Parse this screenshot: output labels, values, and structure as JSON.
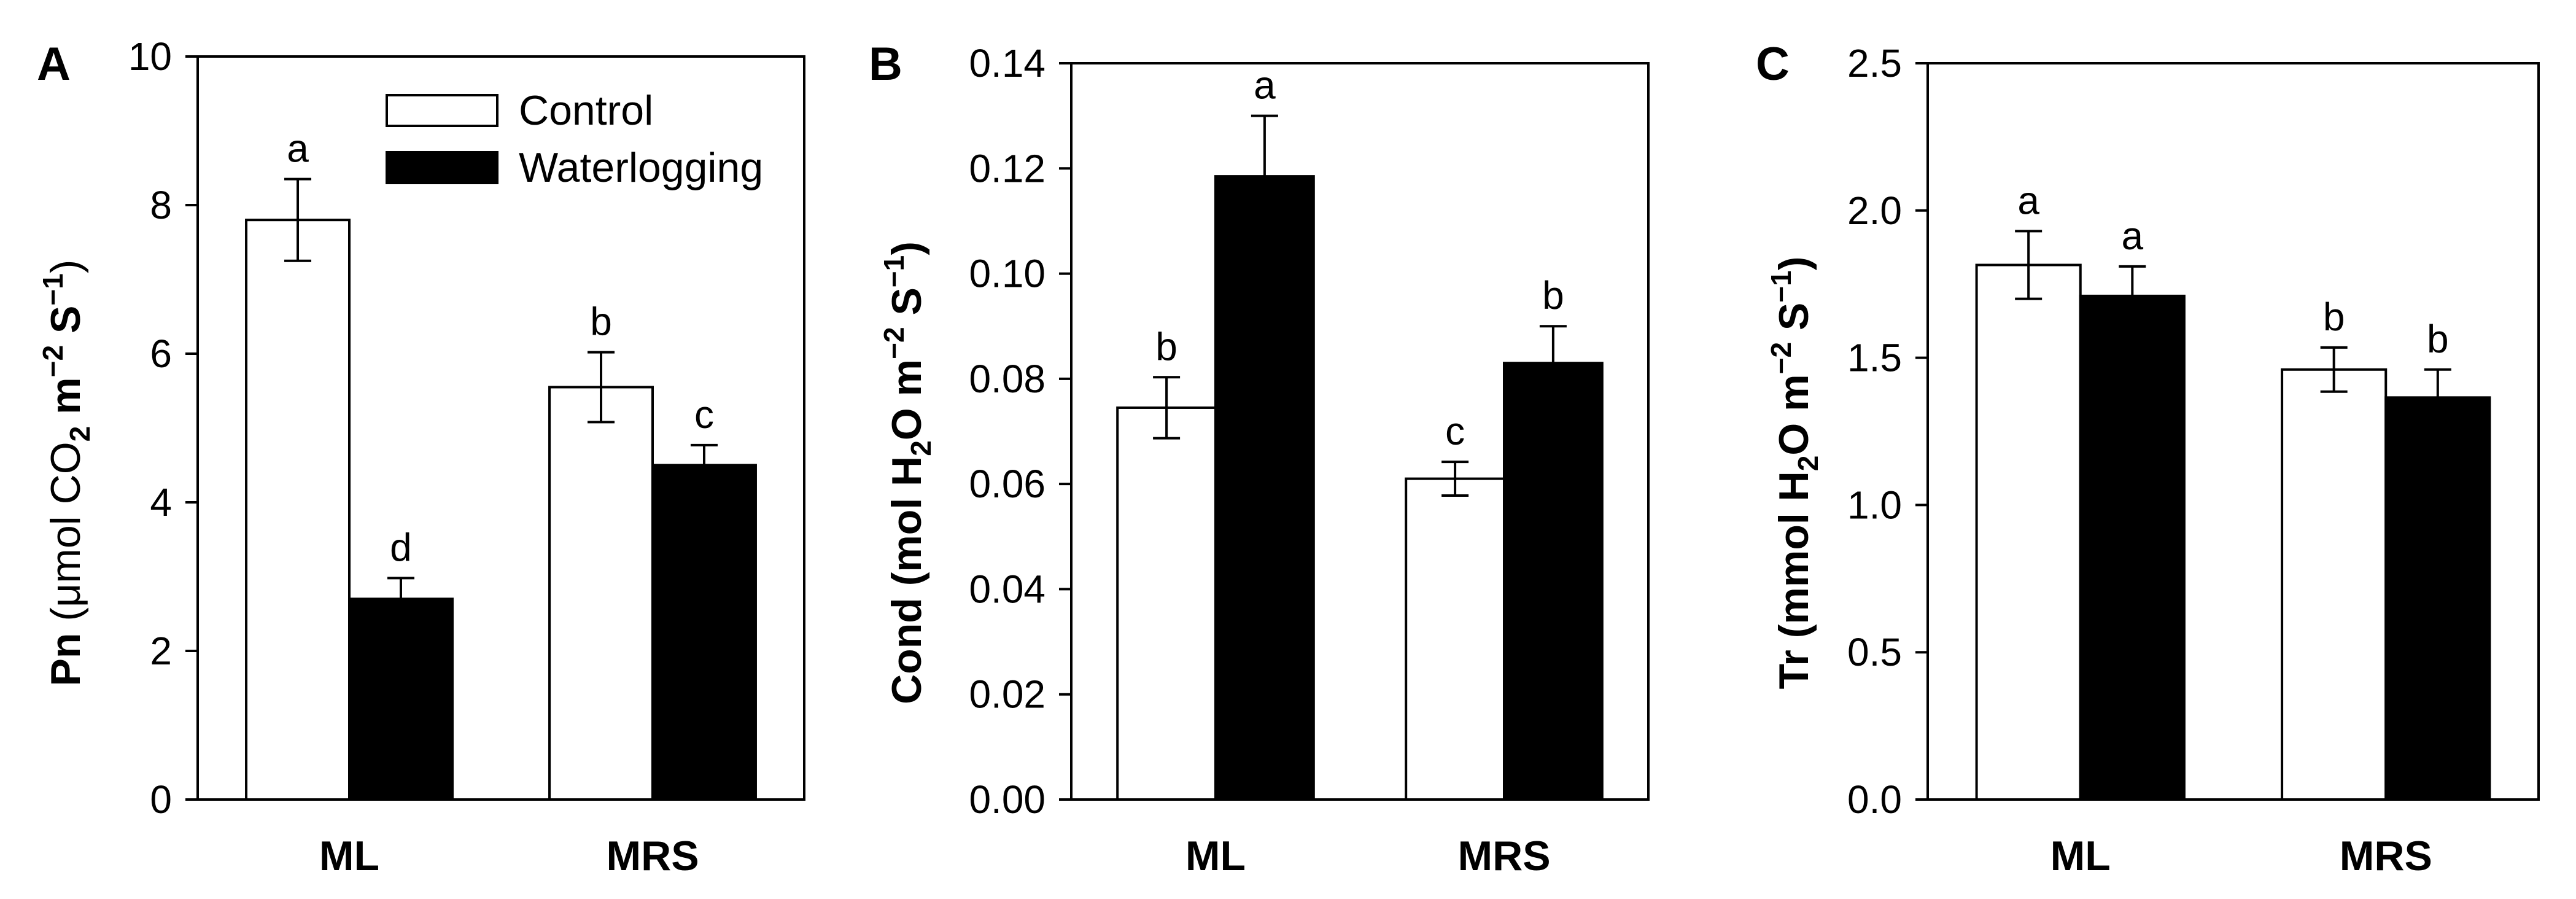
{
  "figure": {
    "legend": {
      "control": "Control",
      "waterlogging": "Waterlogging"
    },
    "colors": {
      "control": "#ffffff",
      "waterlogging": "#000000",
      "stroke": "#000000"
    }
  },
  "chart_data": [
    {
      "type": "bar",
      "panel": "A",
      "categories": [
        "ML",
        "MRS"
      ],
      "series": [
        {
          "name": "Control",
          "values": [
            7.8,
            5.55
          ],
          "errors": [
            0.55,
            0.47
          ],
          "letters": [
            "a",
            "b"
          ]
        },
        {
          "name": "Waterlogging",
          "values": [
            2.7,
            4.5
          ],
          "errors": [
            0.28,
            0.27
          ],
          "letters": [
            "d",
            "c"
          ]
        }
      ],
      "ylim": [
        0,
        10
      ],
      "yticks": [
        0,
        2,
        4,
        6,
        8,
        10
      ],
      "ytick_labels": [
        "0",
        "2",
        "4",
        "6",
        "8",
        "10"
      ],
      "ylabel": {
        "bold": "Pn",
        "rest": "(μmol CO",
        "sub": "2",
        "unit": "m",
        "exp1": "−2",
        "s": "S",
        "exp2": "−1",
        "close": ")"
      },
      "legend_position": "top-right"
    },
    {
      "type": "bar",
      "panel": "B",
      "categories": [
        "ML",
        "MRS"
      ],
      "series": [
        {
          "name": "Control",
          "values": [
            0.0745,
            0.061
          ],
          "errors": [
            0.0058,
            0.0032
          ],
          "letters": [
            "b",
            "c"
          ]
        },
        {
          "name": "Waterlogging",
          "values": [
            0.1185,
            0.083
          ],
          "errors": [
            0.0115,
            0.007
          ],
          "letters": [
            "a",
            "b"
          ]
        }
      ],
      "ylim": [
        0,
        0.14
      ],
      "yticks": [
        0,
        0.02,
        0.04,
        0.06,
        0.08,
        0.1,
        0.12,
        0.14
      ],
      "ytick_labels": [
        "0.00",
        "0.02",
        "0.04",
        "0.06",
        "0.08",
        "0.10",
        "0.12",
        "0.14"
      ],
      "ylabel": {
        "bold": "Cond",
        "rest": "(mol H",
        "sub": "2",
        "unit": "O m",
        "exp1": "−2",
        "s": "S",
        "exp2": "−1",
        "close": ")"
      }
    },
    {
      "type": "bar",
      "panel": "C",
      "categories": [
        "ML",
        "MRS"
      ],
      "series": [
        {
          "name": "Control",
          "values": [
            1.815,
            1.46
          ],
          "errors": [
            0.115,
            0.075
          ],
          "letters": [
            "a",
            "b"
          ]
        },
        {
          "name": "Waterlogging",
          "values": [
            1.71,
            1.365
          ],
          "errors": [
            0.1,
            0.095
          ],
          "letters": [
            "a",
            "b"
          ]
        }
      ],
      "ylim": [
        0,
        2.5
      ],
      "yticks": [
        0,
        0.5,
        1,
        1.5,
        2,
        2.5
      ],
      "ytick_labels": [
        "0.0",
        "0.5",
        "1.0",
        "1.5",
        "2.0",
        "2.5"
      ],
      "ylabel": {
        "bold": "Tr",
        "rest": "(mmol H",
        "sub": "2",
        "unit": "O m",
        "exp1": "−2",
        "s": "S",
        "exp2": "−1",
        "close": ")"
      }
    }
  ]
}
